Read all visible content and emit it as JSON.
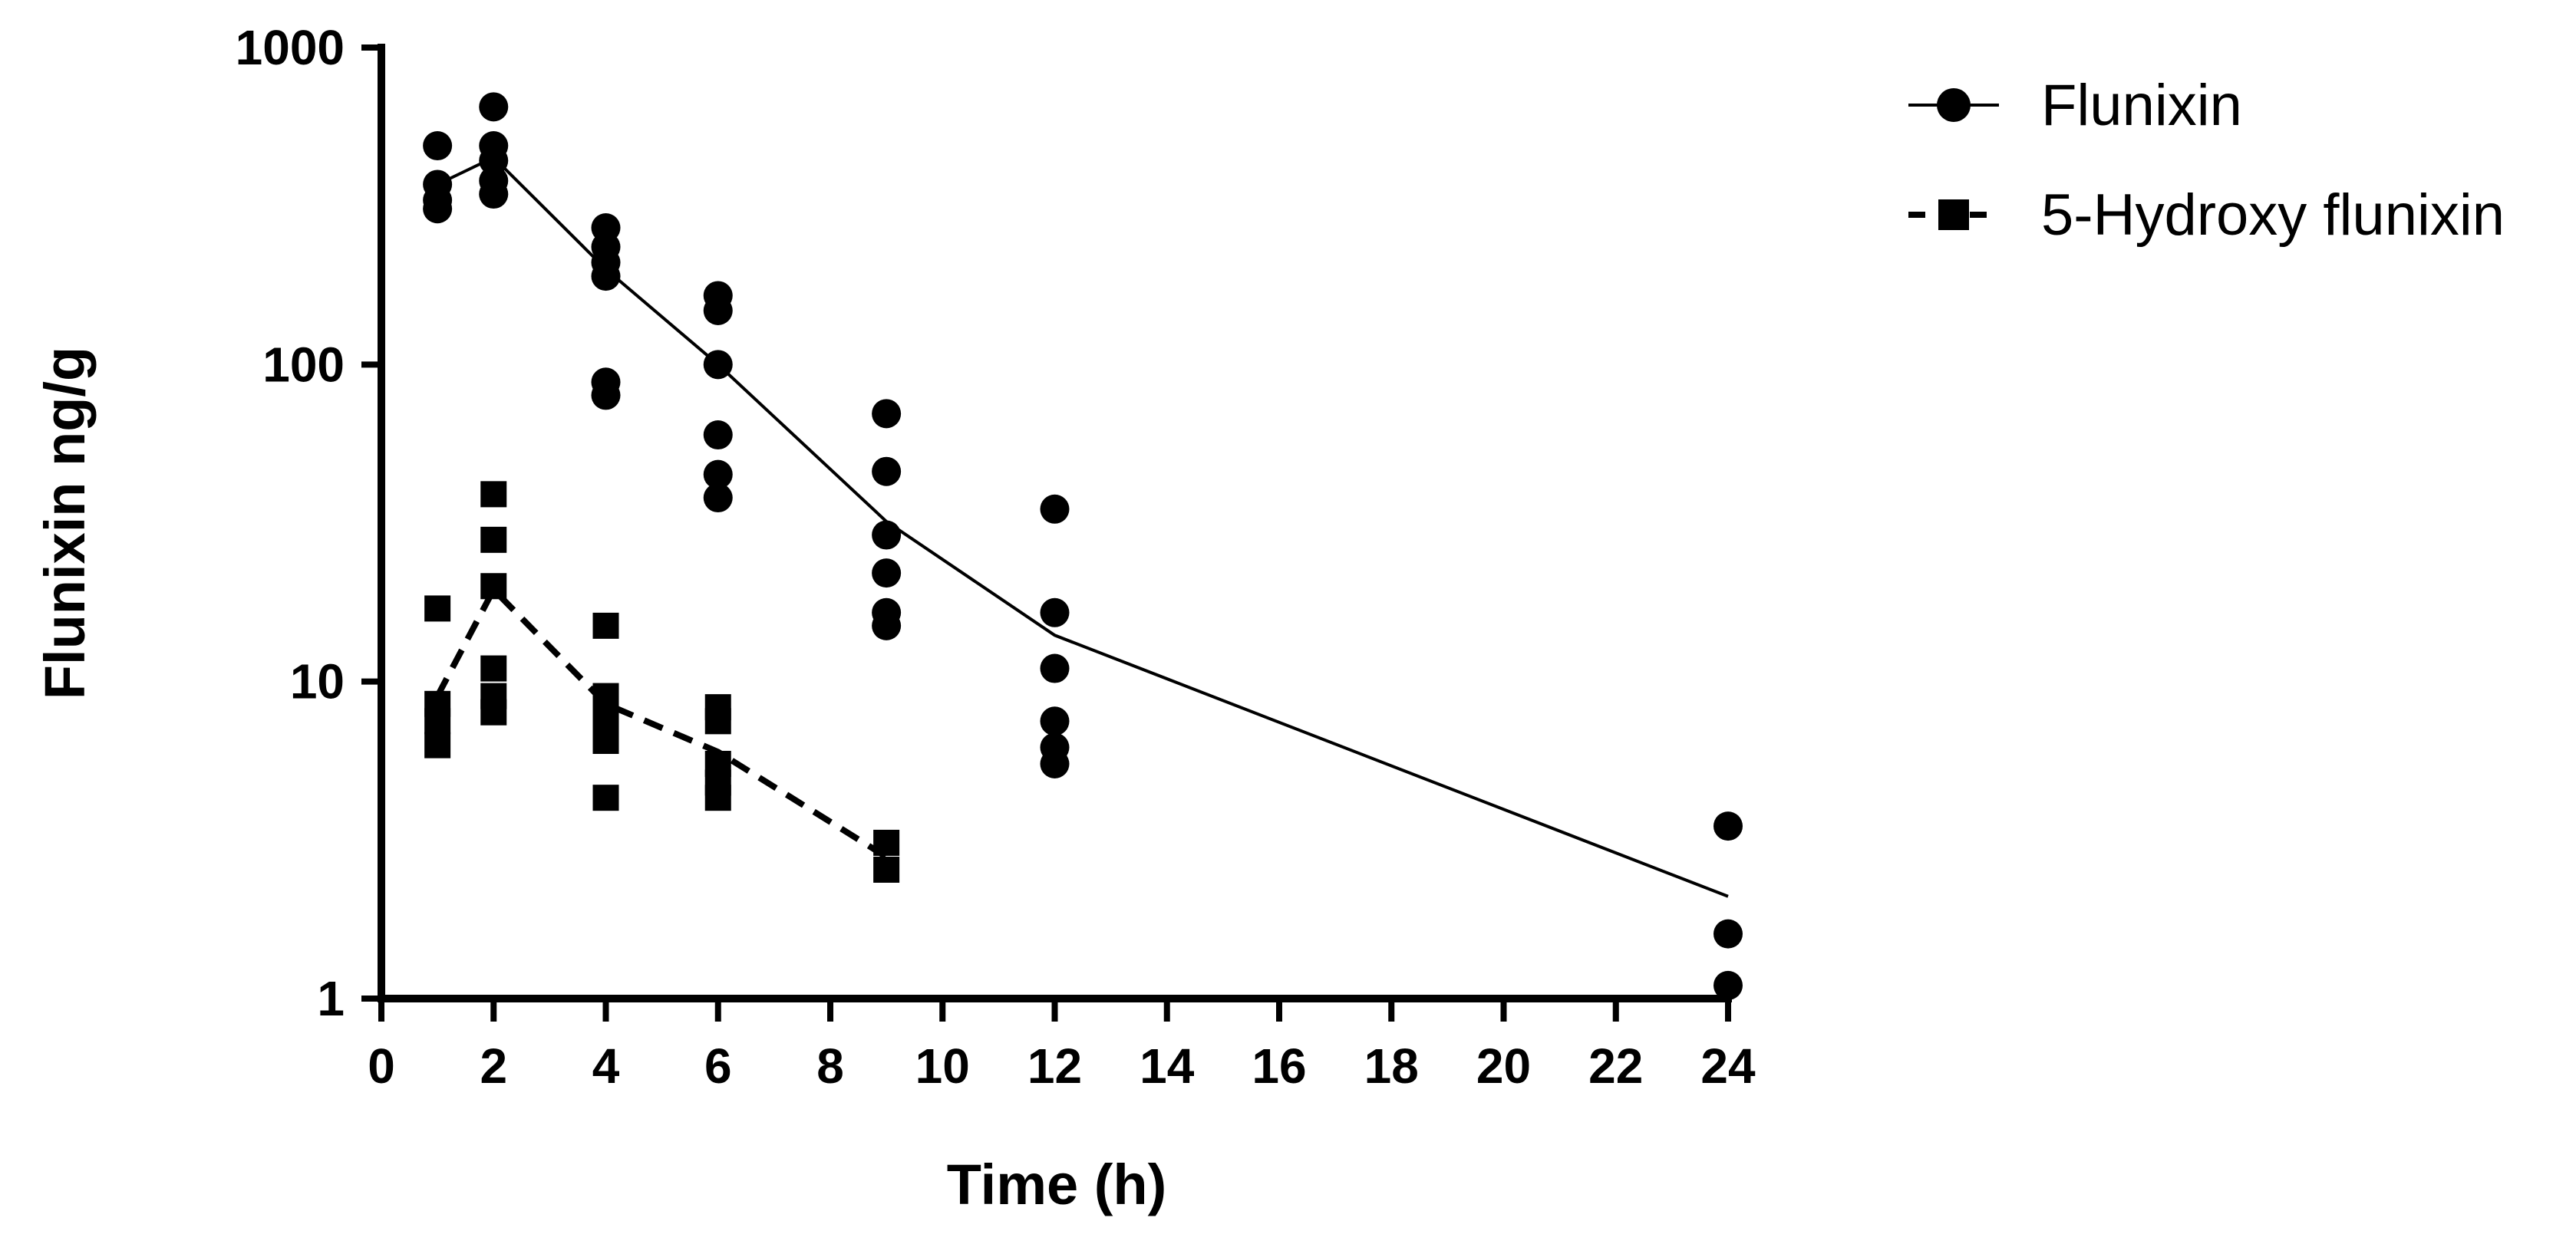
{
  "chart_data": {
    "type": "scatter",
    "title": "",
    "xlabel": "Time (h)",
    "ylabel": "Flunixin ng/g",
    "xlim": [
      0,
      24
    ],
    "ylim": [
      1,
      1000
    ],
    "yscale": "log",
    "grid": false,
    "legend_position": "top-right",
    "x_ticks": [
      "0",
      "2",
      "4",
      "6",
      "8",
      "10",
      "12",
      "14",
      "16",
      "18",
      "20",
      "22",
      "24"
    ],
    "y_ticks": [
      "1",
      "10",
      "100",
      "1000"
    ],
    "series": [
      {
        "name": "Flunixin",
        "marker": "circle",
        "line": "solid",
        "points": [
          [
            1,
            490
          ],
          [
            1,
            370
          ],
          [
            1,
            330
          ],
          [
            1,
            310
          ],
          [
            2,
            650
          ],
          [
            2,
            490
          ],
          [
            2,
            440
          ],
          [
            2,
            380
          ],
          [
            2,
            345
          ],
          [
            4,
            270
          ],
          [
            4,
            235
          ],
          [
            4,
            210
          ],
          [
            4,
            190
          ],
          [
            4,
            88
          ],
          [
            4,
            80
          ],
          [
            6,
            165
          ],
          [
            6,
            148
          ],
          [
            6,
            100
          ],
          [
            6,
            60
          ],
          [
            6,
            45
          ],
          [
            6,
            38
          ],
          [
            9,
            70
          ],
          [
            9,
            46
          ],
          [
            9,
            29
          ],
          [
            9,
            22
          ],
          [
            9,
            16.5
          ],
          [
            9,
            15
          ],
          [
            12,
            35
          ],
          [
            12,
            16.5
          ],
          [
            12,
            11
          ],
          [
            12,
            7.5
          ],
          [
            12,
            6.2
          ],
          [
            12,
            5.5
          ],
          [
            24,
            3.5
          ],
          [
            24,
            1.6
          ],
          [
            24,
            1.1
          ]
        ],
        "fit": [
          [
            1,
            370
          ],
          [
            2,
            450
          ],
          [
            4,
            200
          ],
          [
            6,
            100
          ],
          [
            9,
            32
          ],
          [
            12,
            14
          ],
          [
            24,
            2.1
          ]
        ]
      },
      {
        "name": "5-Hydroxy flunixin",
        "marker": "square",
        "line": "dashed",
        "points": [
          [
            1,
            17
          ],
          [
            1,
            8.5
          ],
          [
            1,
            7.5
          ],
          [
            1,
            6.3
          ],
          [
            2,
            39
          ],
          [
            2,
            28
          ],
          [
            2,
            20
          ],
          [
            2,
            11
          ],
          [
            2,
            9
          ],
          [
            2,
            8
          ],
          [
            4,
            15
          ],
          [
            4,
            9
          ],
          [
            4,
            7.5
          ],
          [
            4,
            6.5
          ],
          [
            4,
            4.3
          ],
          [
            6,
            8.3
          ],
          [
            6,
            7.5
          ],
          [
            6,
            5.5
          ],
          [
            6,
            4.8
          ],
          [
            6,
            4.3
          ],
          [
            9,
            3.1
          ],
          [
            9,
            2.55
          ]
        ],
        "fit": [
          [
            1,
            9
          ],
          [
            2,
            19.5
          ],
          [
            4,
            8.5
          ],
          [
            6,
            6
          ],
          [
            9,
            2.8
          ]
        ]
      }
    ]
  }
}
